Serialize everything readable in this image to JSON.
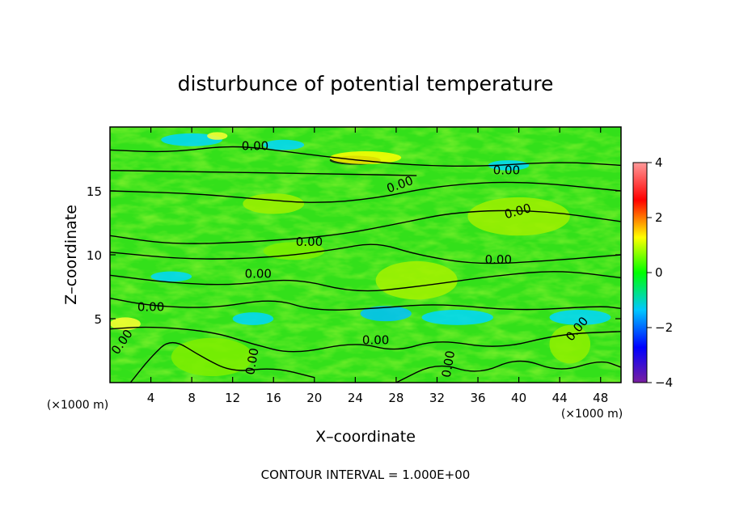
{
  "chart_data": {
    "type": "heatmap",
    "title": "disturbunce of potential temperature",
    "xlabel": "X–coordinate",
    "ylabel": "Z–coordinate",
    "x_unit": "(×1000 m)",
    "y_unit": "(×1000 m)",
    "xlim": [
      0,
      50
    ],
    "ylim": [
      0,
      20
    ],
    "x_ticks": [
      4,
      8,
      12,
      16,
      20,
      24,
      28,
      32,
      36,
      40,
      44,
      48
    ],
    "y_ticks": [
      5,
      10,
      15
    ],
    "colorbar": {
      "range": [
        -4,
        4
      ],
      "ticks": [
        4,
        2,
        0,
        -2,
        -4
      ],
      "colors": [
        "#7a1fa0",
        "#0000ff",
        "#00c8ff",
        "#00ff00",
        "#ffff00",
        "#ff0000",
        "#ff9a9a"
      ]
    },
    "contour_interval": 1.0,
    "contour_labels": [
      "0.00",
      "0.00",
      "0.00",
      "0.00",
      "0.00",
      "0.00",
      "0.00",
      "0.00",
      "0.00",
      "0.00",
      "0.00",
      "0.00",
      "0.00"
    ],
    "footer": "CONTOUR INTERVAL = 1.000E+00"
  }
}
